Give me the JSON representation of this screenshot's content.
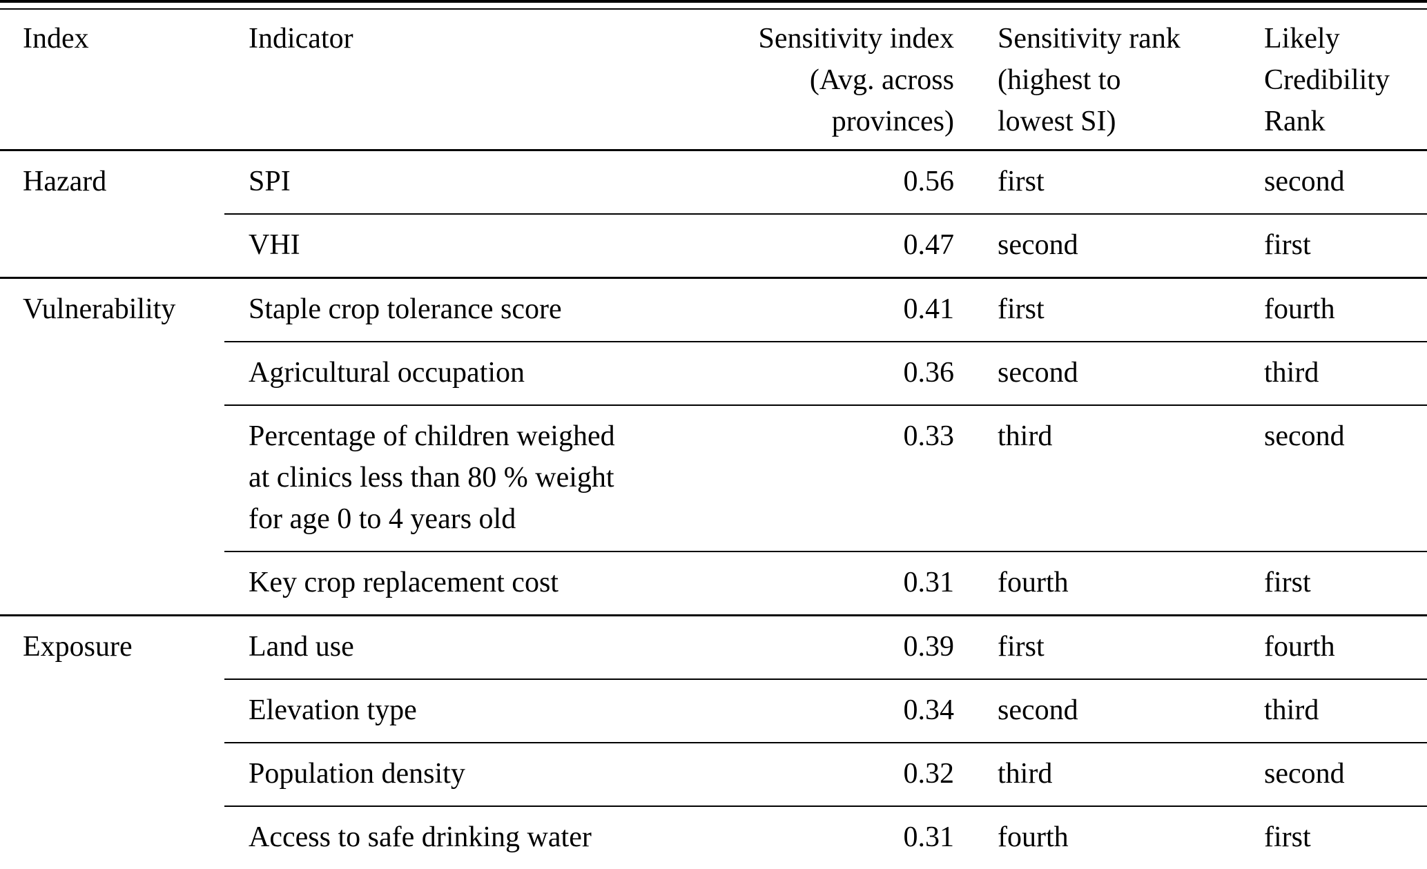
{
  "table": {
    "header": {
      "index": "Index",
      "indicator": "Indicator",
      "sensitivity_index": [
        "Sensitivity index",
        "(Avg. across",
        "provinces)"
      ],
      "sensitivity_rank": [
        "Sensitivity rank",
        "(highest to",
        "lowest SI)"
      ],
      "credibility_rank": [
        "Likely",
        "Credibility",
        "Rank"
      ]
    },
    "sections": [
      {
        "index": "Hazard",
        "rows": [
          {
            "indicator": "SPI",
            "sensitivity_index": "0.56",
            "sensitivity_rank": "first",
            "credibility_rank": "second"
          },
          {
            "indicator": "VHI",
            "sensitivity_index": "0.47",
            "sensitivity_rank": "second",
            "credibility_rank": "first"
          }
        ]
      },
      {
        "index": "Vulnerability",
        "rows": [
          {
            "indicator": "Staple crop tolerance score",
            "sensitivity_index": "0.41",
            "sensitivity_rank": "first",
            "credibility_rank": "fourth"
          },
          {
            "indicator": "Agricultural occupation",
            "sensitivity_index": "0.36",
            "sensitivity_rank": "second",
            "credibility_rank": "third"
          },
          {
            "indicator": [
              "Percentage of children weighed",
              "at clinics less than 80 % weight",
              "for age 0 to 4 years old"
            ],
            "sensitivity_index": "0.33",
            "sensitivity_rank": "third",
            "credibility_rank": "second"
          },
          {
            "indicator": "Key crop replacement cost",
            "sensitivity_index": "0.31",
            "sensitivity_rank": "fourth",
            "credibility_rank": "first"
          }
        ]
      },
      {
        "index": "Exposure",
        "rows": [
          {
            "indicator": "Land use",
            "sensitivity_index": "0.39",
            "sensitivity_rank": "first",
            "credibility_rank": "fourth"
          },
          {
            "indicator": "Elevation type",
            "sensitivity_index": "0.34",
            "sensitivity_rank": "second",
            "credibility_rank": "third"
          },
          {
            "indicator": "Population density",
            "sensitivity_index": "0.32",
            "sensitivity_rank": "third",
            "credibility_rank": "second"
          },
          {
            "indicator": "Access to safe drinking water",
            "sensitivity_index": "0.31",
            "sensitivity_rank": "fourth",
            "credibility_rank": "first"
          }
        ]
      }
    ]
  }
}
